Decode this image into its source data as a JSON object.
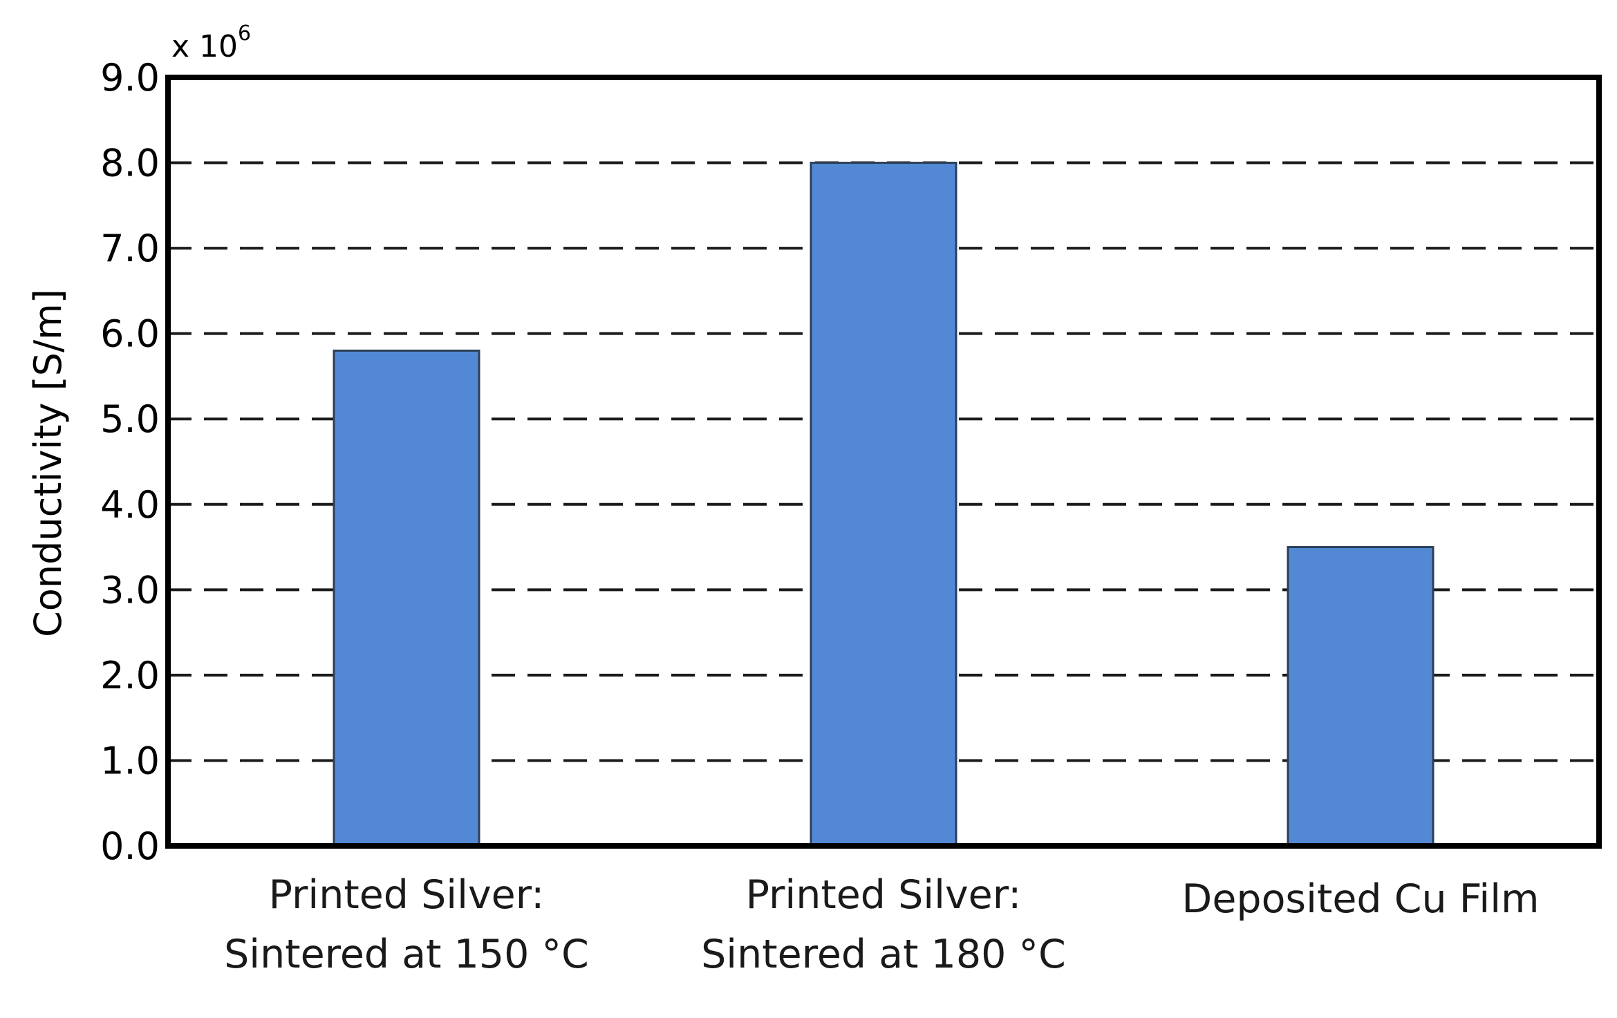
{
  "chart_data": {
    "type": "bar",
    "categories": [
      [
        "Printed Silver:",
        "Sintered at 150 °C"
      ],
      [
        "Printed Silver:",
        "Sintered at 180 °C"
      ],
      [
        "Deposited Cu Film"
      ]
    ],
    "values": [
      5.8,
      8.0,
      3.5
    ],
    "ylabel": "Conductivity [S/m]",
    "y_multiplier": {
      "base": "x 10",
      "exponent": "6"
    },
    "ylim": [
      0,
      9
    ],
    "yticks": [
      "0.0",
      "1.0",
      "2.0",
      "3.0",
      "4.0",
      "5.0",
      "6.0",
      "7.0",
      "8.0",
      "9.0"
    ],
    "grid": "horizontal-dashed",
    "bar_color": "#5389D4",
    "bar_edge_color": "#2B3F57"
  }
}
